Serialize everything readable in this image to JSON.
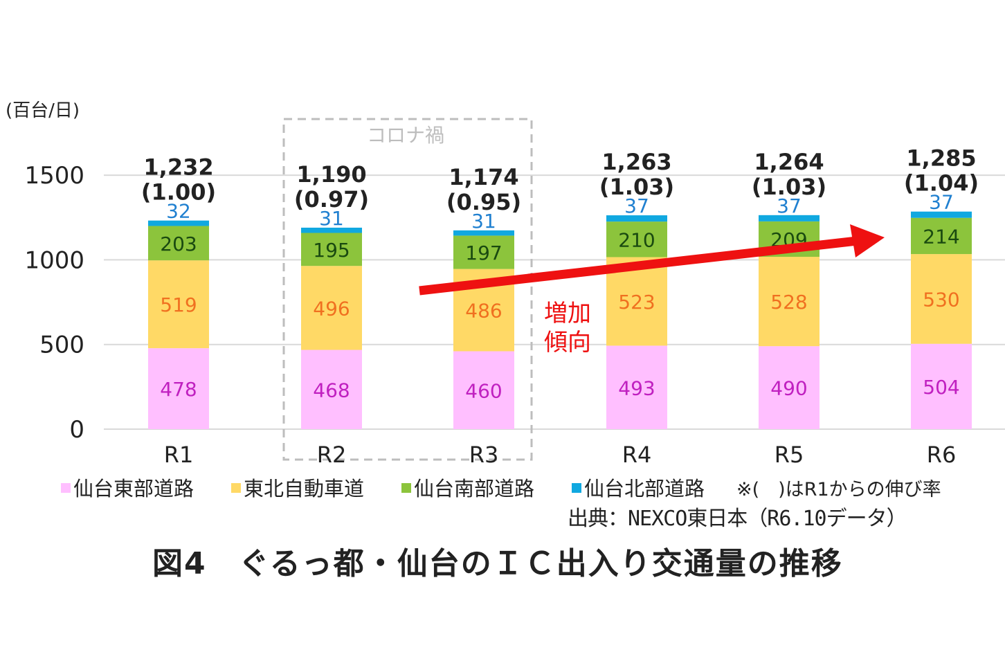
{
  "chart_data": {
    "type": "bar",
    "stacked": true,
    "categories": [
      "R1",
      "R2",
      "R3",
      "R4",
      "R5",
      "R6"
    ],
    "series": [
      {
        "name": "仙台東部道路",
        "color": "#ffbfff",
        "label_color": "#c020c0",
        "values": [
          478,
          468,
          460,
          493,
          490,
          504
        ]
      },
      {
        "name": "東北自動車道",
        "color": "#ffd966",
        "label_color": "#f07020",
        "values": [
          519,
          496,
          486,
          523,
          528,
          530
        ]
      },
      {
        "name": "仙台南部道路",
        "color": "#8cc43c",
        "label_color": "#1a4a10",
        "values": [
          203,
          195,
          197,
          210,
          209,
          214
        ]
      },
      {
        "name": "仙台北部道路",
        "color": "#10a8e0",
        "label_color": "#2080d0",
        "values": [
          32,
          31,
          31,
          37,
          37,
          37
        ]
      }
    ],
    "totals": [
      "1,232",
      "1,190",
      "1,174",
      "1,263",
      "1,264",
      "1,285"
    ],
    "ratios": [
      "(1.00)",
      "(0.97)",
      "(0.95)",
      "(1.03)",
      "(1.03)",
      "(1.04)"
    ],
    "yticks": [
      0,
      500,
      1000,
      1500
    ],
    "ylim": [
      0,
      1600
    ],
    "ylabel": "(百台/日)",
    "grid": true,
    "legend_position": "bottom",
    "legend_note": "※(　)はR1からの伸び率",
    "annotations": {
      "corona": "コロナ禍",
      "trend_line1": "増加",
      "trend_line2": "傾向",
      "trend_color": "#ee1111"
    }
  },
  "source": "出典：NEXCO東日本（R6.10データ）",
  "caption": "図4　ぐるっ都・仙台のＩＣ出入り交通量の推移"
}
